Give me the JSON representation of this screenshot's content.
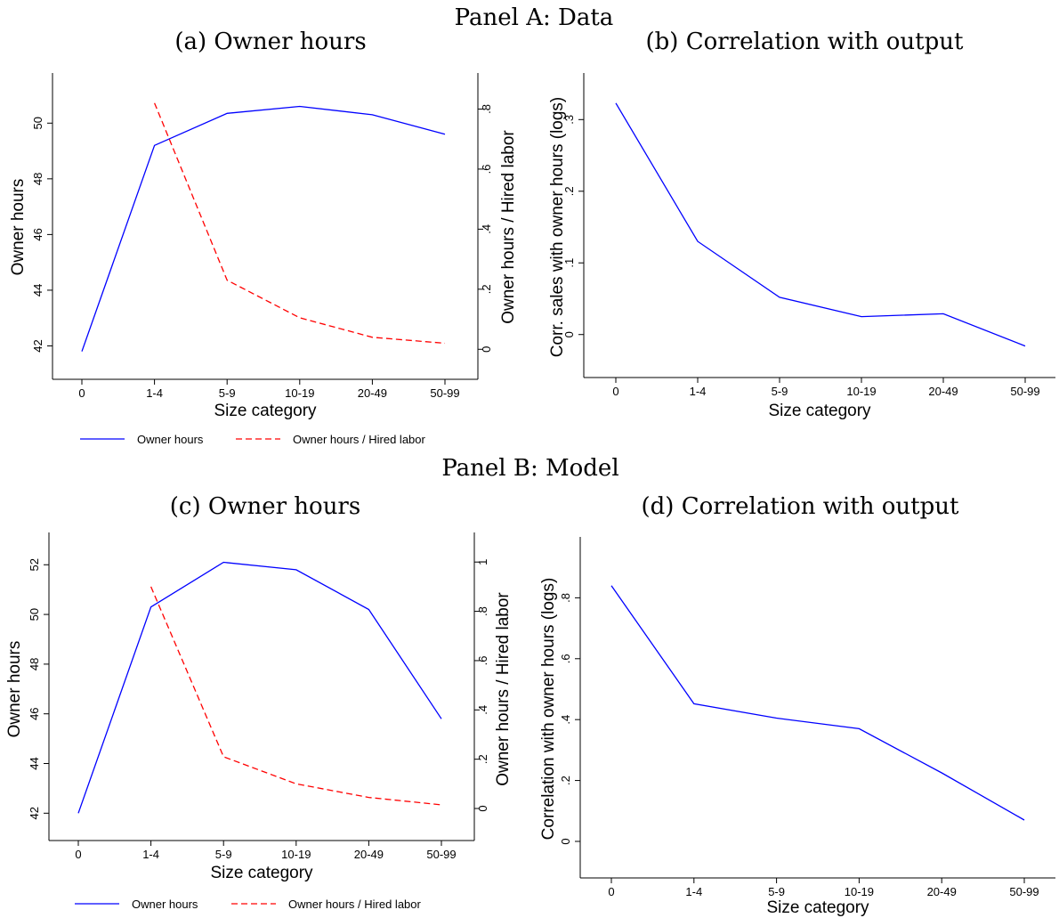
{
  "panels": {
    "A": "Panel A: Data",
    "B": "Panel B: Model"
  },
  "legend": {
    "owner_hours": "Owner hours",
    "ratio": "Owner hours / Hired labor"
  },
  "colors": {
    "blue": "#0000ff",
    "red": "#ff0000",
    "axis": "#000000"
  },
  "chart_data": [
    {
      "id": "a",
      "type": "line",
      "title": "(a) Owner hours",
      "xlabel": "Size category",
      "ylabel": "Owner hours",
      "ylabel_right": "Owner hours / Hired labor",
      "categories": [
        "0",
        "1-4",
        "5-9",
        "10-19",
        "20-49",
        "50-99"
      ],
      "ylim": [
        40.8,
        51.8
      ],
      "yticks": [
        42,
        44,
        46,
        48,
        50
      ],
      "yticks_labels": [
        "42",
        "44",
        "46",
        "48",
        "50"
      ],
      "ylim_right": [
        -0.1,
        0.92
      ],
      "yticks_right": [
        0,
        0.2,
        0.4,
        0.6,
        0.8
      ],
      "yticks_right_labels": [
        "0",
        ".2",
        ".4",
        ".6",
        ".8"
      ],
      "series": [
        {
          "name": "Owner hours",
          "axis": "left",
          "style": "solid",
          "color": "#0000ff",
          "values": [
            41.8,
            49.2,
            50.35,
            50.6,
            50.3,
            49.6
          ]
        },
        {
          "name": "Owner hours / Hired labor",
          "axis": "right",
          "style": "dashed",
          "color": "#ff0000",
          "values": [
            null,
            0.82,
            0.23,
            0.105,
            0.04,
            0.02
          ]
        }
      ],
      "legend": true,
      "grid": false
    },
    {
      "id": "b",
      "type": "line",
      "title": "(b) Correlation with output",
      "xlabel": "Size category",
      "ylabel": "Corr. sales with owner hours (logs)",
      "categories": [
        "0",
        "1-4",
        "5-9",
        "10-19",
        "20-49",
        "50-99"
      ],
      "ylim": [
        -0.06,
        0.365
      ],
      "yticks": [
        0,
        0.1,
        0.2,
        0.3
      ],
      "yticks_labels": [
        "0",
        ".1",
        ".2",
        ".3"
      ],
      "series": [
        {
          "axis": "left",
          "style": "solid",
          "color": "#0000ff",
          "values": [
            0.323,
            0.13,
            0.052,
            0.025,
            0.029,
            -0.016
          ]
        }
      ],
      "legend": false,
      "grid": false
    },
    {
      "id": "c",
      "type": "line",
      "title": "(c) Owner hours",
      "xlabel": "Size category",
      "ylabel": "Owner hours",
      "ylabel_right": "Owner hours / Hired labor",
      "categories": [
        "0",
        "1-4",
        "5-9",
        "10-19",
        "20-49",
        "50-99"
      ],
      "ylim": [
        40.9,
        53.3
      ],
      "yticks": [
        42,
        44,
        46,
        48,
        50,
        52
      ],
      "yticks_labels": [
        "42",
        "44",
        "46",
        "48",
        "50",
        "52"
      ],
      "ylim_right": [
        -0.13,
        1.12
      ],
      "yticks_right": [
        0,
        0.2,
        0.4,
        0.6,
        0.8,
        1
      ],
      "yticks_right_labels": [
        "0",
        ".2",
        ".4",
        ".6",
        ".8",
        "1"
      ],
      "series": [
        {
          "name": "Owner hours",
          "axis": "left",
          "style": "solid",
          "color": "#0000ff",
          "values": [
            42.0,
            50.3,
            52.1,
            51.8,
            50.2,
            45.8
          ]
        },
        {
          "name": "Owner hours / Hired labor",
          "axis": "right",
          "style": "dashed",
          "color": "#ff0000",
          "values": [
            null,
            0.9,
            0.21,
            0.1,
            0.045,
            0.015
          ]
        }
      ],
      "legend": true,
      "grid": false
    },
    {
      "id": "d",
      "type": "line",
      "title": "(d) Correlation with output",
      "xlabel": "Size category",
      "ylabel": "Correlation with owner hours (logs)",
      "categories": [
        "0",
        "1-4",
        "5-9",
        "10-19",
        "20-49",
        "50-99"
      ],
      "ylim": [
        -0.12,
        1.0
      ],
      "yticks": [
        0,
        0.2,
        0.4,
        0.6,
        0.8
      ],
      "yticks_labels": [
        "0",
        ".2",
        ".4",
        ".6",
        ".8"
      ],
      "series": [
        {
          "axis": "left",
          "style": "solid",
          "color": "#0000ff",
          "values": [
            0.84,
            0.452,
            0.405,
            0.37,
            0.225,
            0.07
          ]
        }
      ],
      "legend": false,
      "grid": false
    }
  ]
}
